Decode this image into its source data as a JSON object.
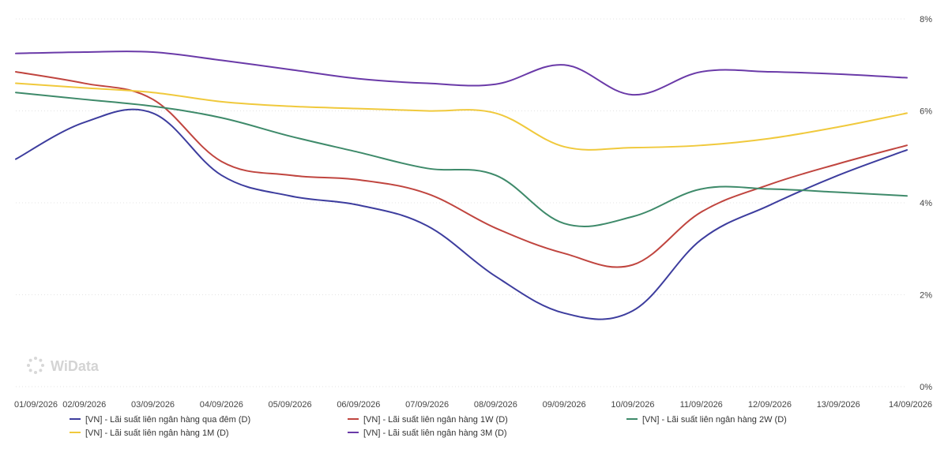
{
  "watermark": "WiData",
  "chart_data": {
    "type": "line",
    "title": "",
    "xlabel": "",
    "ylabel": "",
    "categories": [
      "01/09/2026",
      "02/09/2026",
      "03/09/2026",
      "04/09/2026",
      "05/09/2026",
      "06/09/2026",
      "07/09/2026",
      "08/09/2026",
      "09/09/2026",
      "10/09/2026",
      "11/09/2026",
      "12/09/2026",
      "13/09/2026",
      "14/09/2026"
    ],
    "ylim": [
      0,
      8
    ],
    "y_ticks": [
      0,
      2,
      4,
      6,
      8
    ],
    "y_tick_labels": [
      "0%",
      "2%",
      "4%",
      "6%",
      "8%"
    ],
    "y_axis_side": "right",
    "grid": true,
    "legend_position": "bottom",
    "series": [
      {
        "name": "[VN] - Lãi suất liên ngân hàng qua đêm (D)",
        "color": "#3d3d9e",
        "values": [
          4.95,
          5.75,
          5.95,
          4.6,
          4.15,
          3.95,
          3.5,
          2.4,
          1.6,
          1.65,
          3.2,
          3.95,
          4.6,
          5.15
        ]
      },
      {
        "name": "[VN] - Lãi suất liên ngân hàng 1W (D)",
        "color": "#c0453f",
        "values": [
          6.85,
          6.6,
          6.25,
          4.9,
          4.6,
          4.5,
          4.2,
          3.45,
          2.9,
          2.65,
          3.8,
          4.4,
          4.85,
          5.25
        ]
      },
      {
        "name": "[VN] - Lãi suất liên ngân hàng 2W (D)",
        "color": "#3e8a6a",
        "values": [
          6.4,
          6.25,
          6.1,
          5.85,
          5.45,
          5.1,
          4.75,
          4.6,
          3.55,
          3.7,
          4.3,
          4.3,
          4.23,
          4.15
        ]
      },
      {
        "name": "[VN] - Lãi suất liên ngân hàng 1M (D)",
        "color": "#f0c93c",
        "values": [
          6.6,
          6.5,
          6.4,
          6.2,
          6.1,
          6.05,
          6.0,
          5.95,
          5.22,
          5.2,
          5.25,
          5.4,
          5.65,
          5.95
        ]
      },
      {
        "name": "[VN] - Lãi suất liên ngân hàng 3M (D)",
        "color": "#6a3aa8",
        "values": [
          7.25,
          7.28,
          7.28,
          7.1,
          6.9,
          6.7,
          6.6,
          6.58,
          7.0,
          6.35,
          6.85,
          6.85,
          6.8,
          6.72
        ]
      }
    ]
  }
}
